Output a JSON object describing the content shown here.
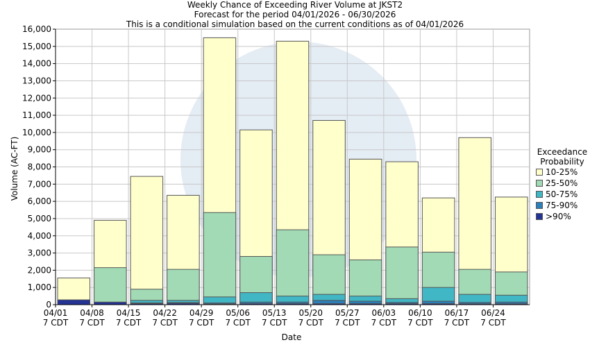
{
  "chart_data": {
    "type": "bar",
    "title": "Weekly Chance of Exceeding River Volume at JKST2",
    "subtitle1": "Forecast for the period 04/01/2026 - 06/30/2026",
    "subtitle2": "This is a conditional simulation based on the current conditions as of 04/01/2026",
    "xlabel": "Date",
    "ylabel": "Volume (AC-FT)",
    "ylim": [
      0,
      16000
    ],
    "yticks": [
      0,
      1000,
      2000,
      3000,
      4000,
      5000,
      6000,
      7000,
      8000,
      9000,
      10000,
      11000,
      12000,
      13000,
      14000,
      15000,
      16000
    ],
    "ytick_labels": [
      "0",
      "1,000",
      "2,000",
      "3,000",
      "4,000",
      "5,000",
      "6,000",
      "7,000",
      "8,000",
      "9,000",
      "10,000",
      "11,000",
      "12,000",
      "13,000",
      "14,000",
      "15,000",
      "16,000"
    ],
    "grid": true,
    "legend_placement": "right",
    "categories": [
      {
        "date": "04/01",
        "tz": "7 CDT"
      },
      {
        "date": "04/08",
        "tz": "7 CDT"
      },
      {
        "date": "04/15",
        "tz": "7 CDT"
      },
      {
        "date": "04/22",
        "tz": "7 CDT"
      },
      {
        "date": "04/29",
        "tz": "7 CDT"
      },
      {
        "date": "05/06",
        "tz": "7 CDT"
      },
      {
        "date": "05/13",
        "tz": "7 CDT"
      },
      {
        "date": "05/20",
        "tz": "7 CDT"
      },
      {
        "date": "05/27",
        "tz": "7 CDT"
      },
      {
        "date": "06/03",
        "tz": "7 CDT"
      },
      {
        "date": "06/10",
        "tz": "7 CDT"
      },
      {
        "date": "06/17",
        "tz": "7 CDT"
      },
      {
        "date": "06/24",
        "tz": "7 CDT"
      }
    ],
    "legend_title": [
      "Exceedance",
      "Probability"
    ],
    "series": [
      {
        "name": "10-25%",
        "color": "#ffffcc",
        "values": [
          1550,
          4900,
          7450,
          6350,
          15500,
          10150,
          15300,
          10700,
          8450,
          8300,
          6200,
          9700,
          6250
        ]
      },
      {
        "name": "25-50%",
        "color": "#a1dab4",
        "values": [
          120,
          2150,
          900,
          2050,
          5350,
          2800,
          4350,
          2900,
          2600,
          3350,
          3050,
          2050,
          1900
        ]
      },
      {
        "name": "50-75%",
        "color": "#41b6c4",
        "values": [
          100,
          120,
          250,
          250,
          450,
          700,
          500,
          600,
          500,
          350,
          1000,
          600,
          550
        ]
      },
      {
        "name": "75-90%",
        "color": "#2c7fb8",
        "values": [
          80,
          80,
          100,
          120,
          100,
          150,
          150,
          250,
          200,
          130,
          200,
          130,
          150
        ]
      },
      {
        "name": ">90%",
        "color": "#253494",
        "values": [
          280,
          150,
          60,
          80,
          40,
          60,
          60,
          60,
          60,
          60,
          60,
          50,
          50
        ]
      }
    ]
  }
}
